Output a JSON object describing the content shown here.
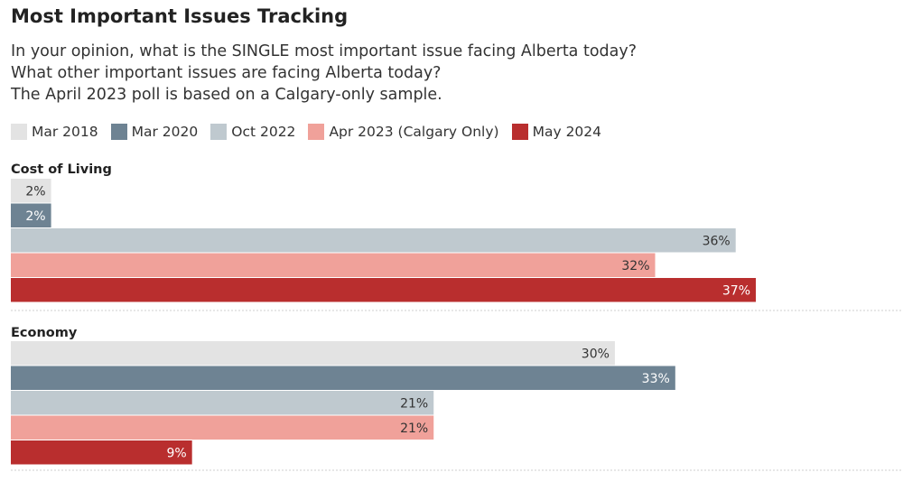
{
  "title": "Most Important Issues Tracking",
  "subtitle_lines": [
    "In your opinion, what is the SINGLE most important issue facing Alberta today?",
    "What other important issues are facing Alberta today?",
    "The April 2023 poll is based on a Calgary-only sample."
  ],
  "chart_data": {
    "type": "bar",
    "orientation": "horizontal",
    "title": "Most Important Issues Tracking",
    "categories": [
      "Cost of Living",
      "Economy"
    ],
    "series": [
      {
        "name": "Mar 2018",
        "color": "#e3e3e3",
        "label_color": "#333333",
        "values": [
          2,
          30
        ],
        "labels": [
          "2%",
          "30%"
        ]
      },
      {
        "name": "Mar 2020",
        "color": "#6e8393",
        "label_color": "#ffffff",
        "values": [
          2,
          33
        ],
        "labels": [
          "2%",
          "33%"
        ]
      },
      {
        "name": "Oct 2022",
        "color": "#bfc9cf",
        "label_color": "#333333",
        "values": [
          36,
          21
        ],
        "labels": [
          "36%",
          "21%"
        ]
      },
      {
        "name": "Apr 2023 (Calgary Only)",
        "color": "#f0a19a",
        "label_color": "#333333",
        "values": [
          32,
          21
        ],
        "labels": [
          "32%",
          "21%"
        ]
      },
      {
        "name": "May 2024",
        "color": "#b92e2e",
        "label_color": "#ffffff",
        "values": [
          37,
          9
        ],
        "labels": [
          "37%",
          "9%"
        ]
      }
    ],
    "xlim": [
      0,
      37
    ],
    "grid": false,
    "legend_position": "top-left"
  }
}
